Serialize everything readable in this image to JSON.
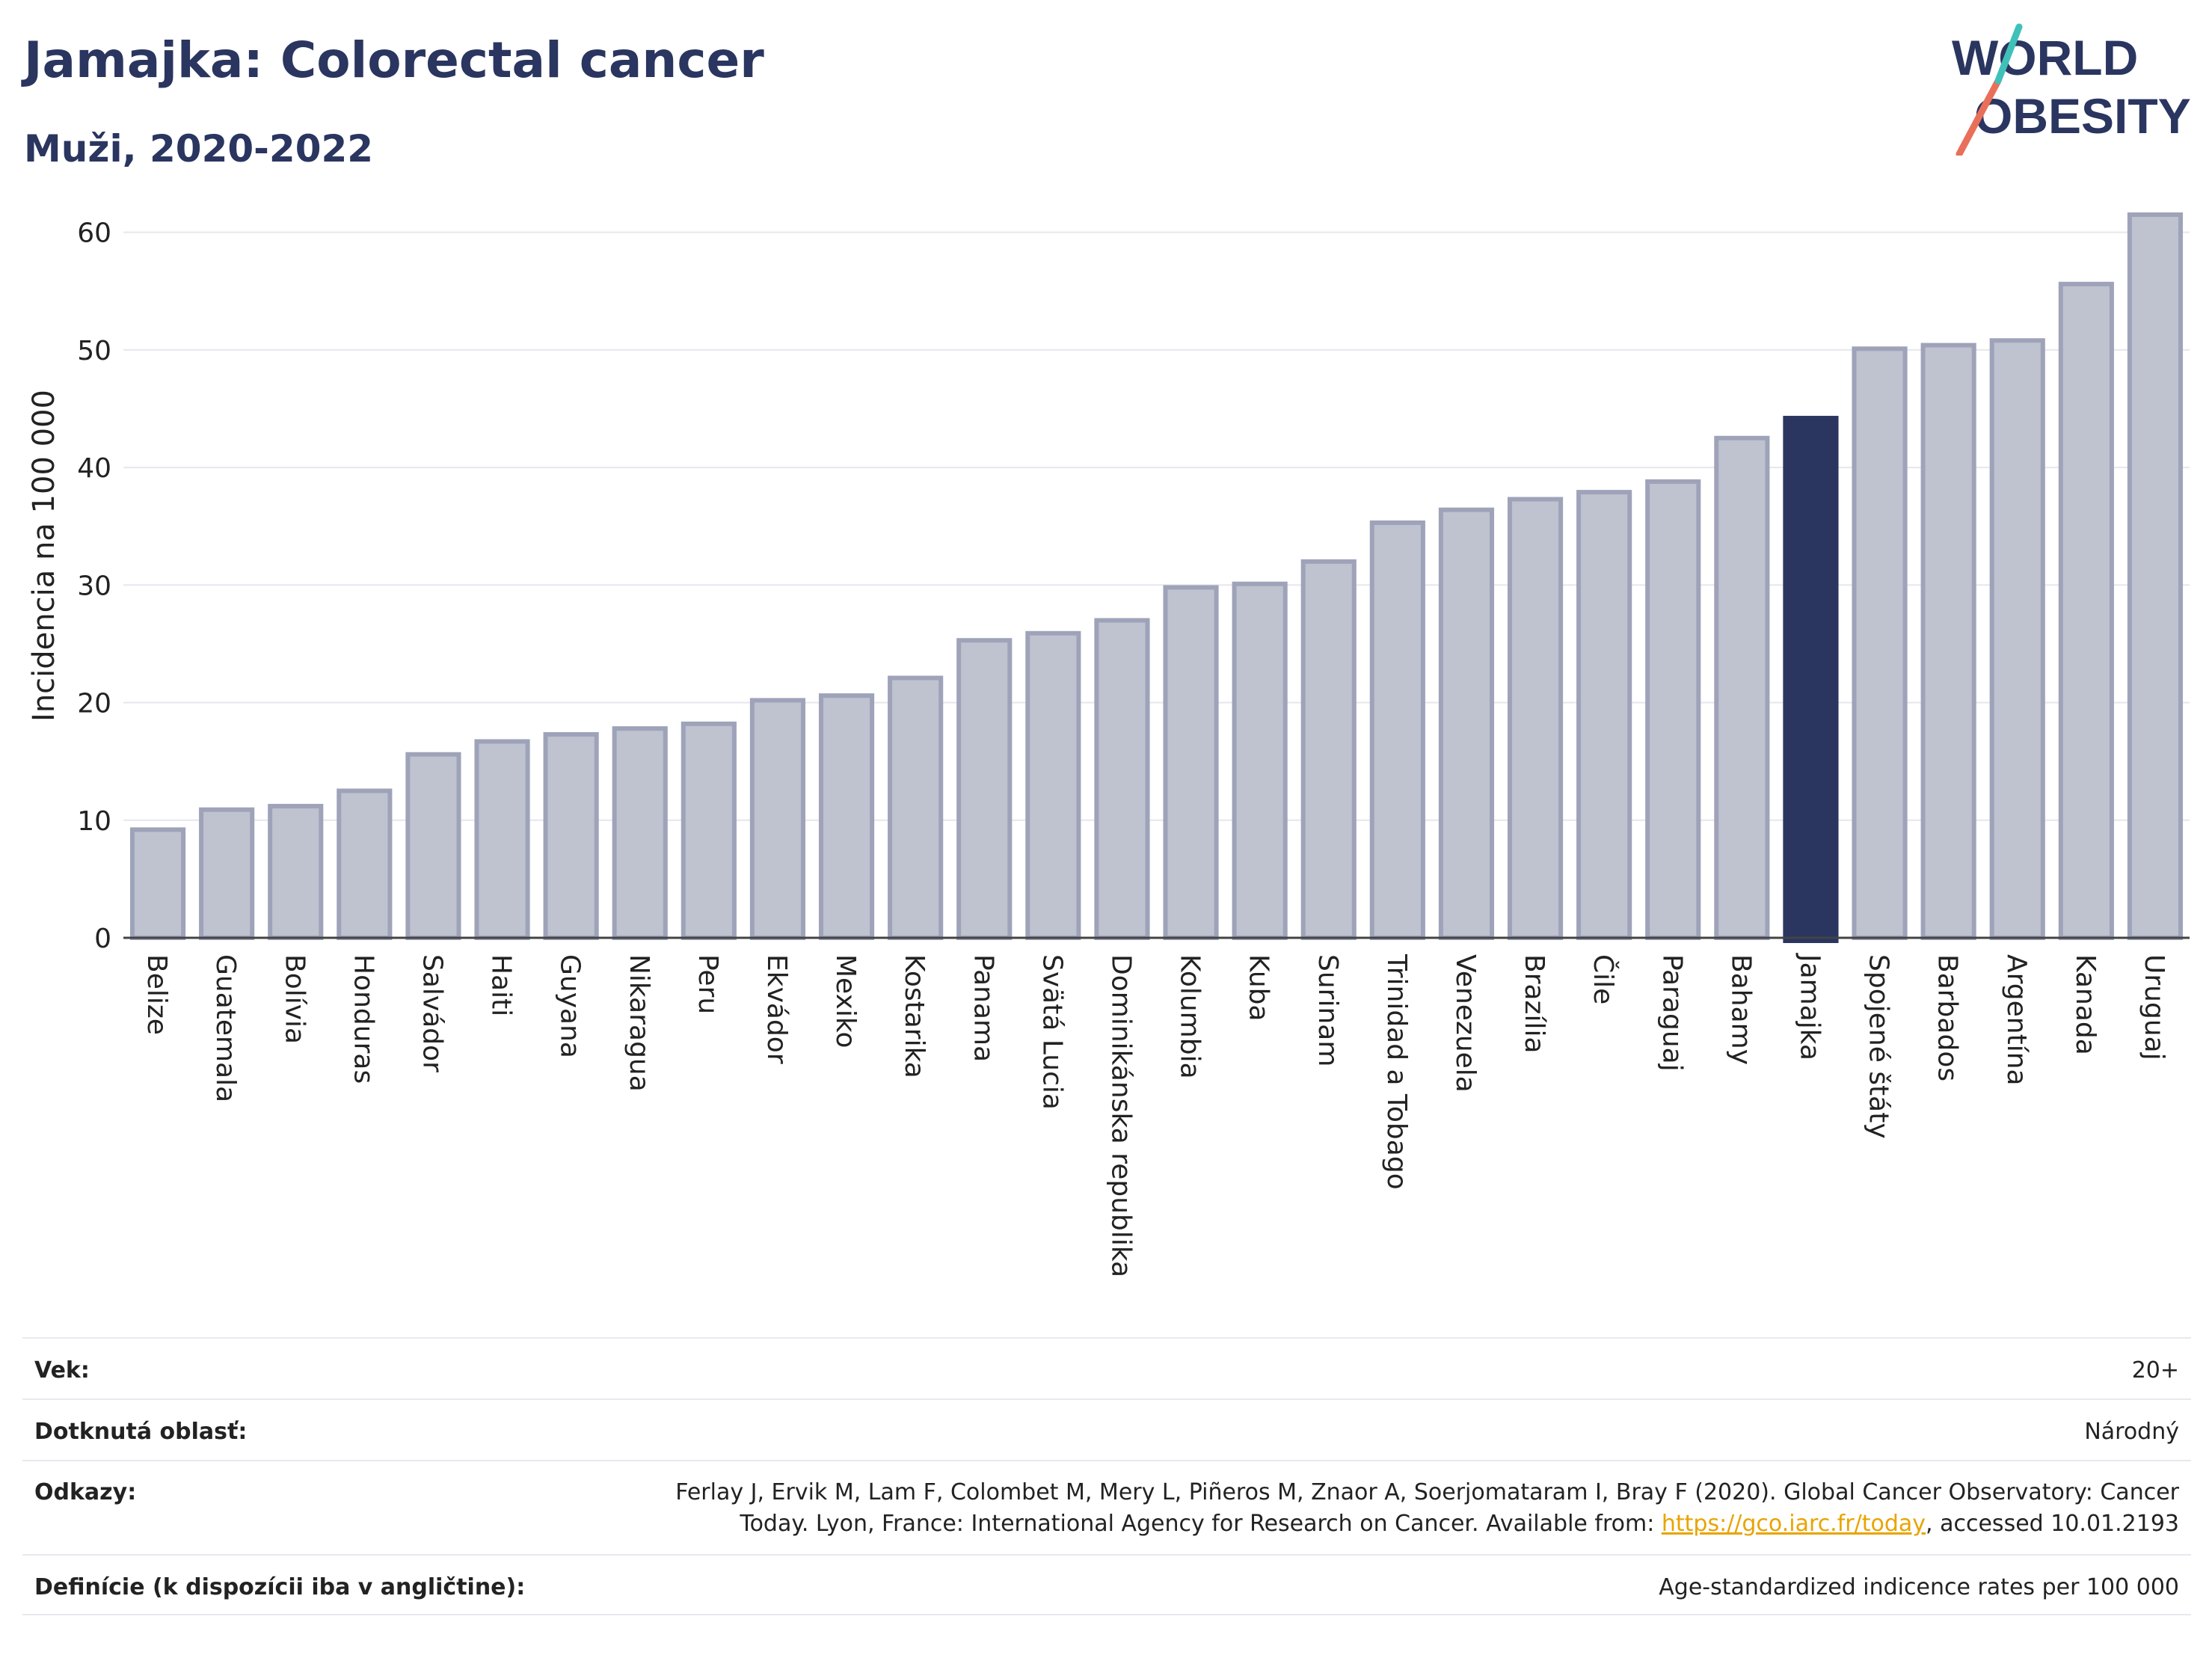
{
  "header": {
    "title": "Jamajka: Colorectal cancer",
    "subtitle": "Muži, 2020-2022"
  },
  "logo": {
    "line1": "WORLD",
    "line2": "OBESITY"
  },
  "colors": {
    "bar_fill": "#bfc2cf",
    "bar_stroke": "#9ea3b9",
    "highlight": "#2a3560",
    "grid": "#e6e6ee",
    "logo_red": "#e8705a",
    "logo_teal": "#3fc1b9"
  },
  "chart_data": {
    "type": "bar",
    "ylabel": "Incidencia na 100 000",
    "ylim": [
      0,
      65
    ],
    "yticks": [
      0,
      10,
      20,
      30,
      40,
      50,
      60
    ],
    "grid": true,
    "highlight": "Jamajka",
    "categories": [
      "Belize",
      "Guatemala",
      "Bolívia",
      "Honduras",
      "Salvádor",
      "Haiti",
      "Guyana",
      "Nikaragua",
      "Peru",
      "Ekvádor",
      "Mexiko",
      "Kostarika",
      "Panama",
      "Svätá Lucia",
      "Dominikánska republika",
      "Kolumbia",
      "Kuba",
      "Surinam",
      "Trinidad a Tobago",
      "Venezuela",
      "Brazília",
      "Čile",
      "Paraguaj",
      "Bahamy",
      "Jamajka",
      "Spojené štáty",
      "Barbados",
      "Argentína",
      "Kanada",
      "Uruguaj"
    ],
    "values": [
      9.2,
      10.9,
      11.2,
      12.5,
      15.6,
      16.7,
      17.3,
      17.8,
      18.2,
      20.2,
      20.6,
      22.1,
      25.3,
      25.9,
      27.0,
      29.8,
      30.1,
      32.0,
      35.3,
      36.4,
      37.3,
      37.9,
      38.8,
      42.5,
      44.2,
      50.1,
      50.4,
      50.8,
      55.6,
      61.5
    ]
  },
  "info": {
    "age_label": "Vek:",
    "age_value": "20+",
    "area_label": "Dotknutá oblasť:",
    "area_value": "Národný",
    "refs_label": "Odkazy:",
    "refs_line1": "Ferlay J, Ervik M, Lam F, Colombet M, Mery L, Piñeros M, Znaor A, Soerjomataram I, Bray F (2020). Global Cancer Observatory: Cancer",
    "refs_line2_pre": "Today. Lyon, France: International Agency for Research on Cancer. Available from: ",
    "refs_link": "https://gco.iarc.fr/today",
    "refs_line2_post": ", accessed 10.01.2193",
    "def_label": "Definície (k dispozícii iba v angličtine):",
    "def_value": "Age-standardized indicence rates per 100 000"
  }
}
